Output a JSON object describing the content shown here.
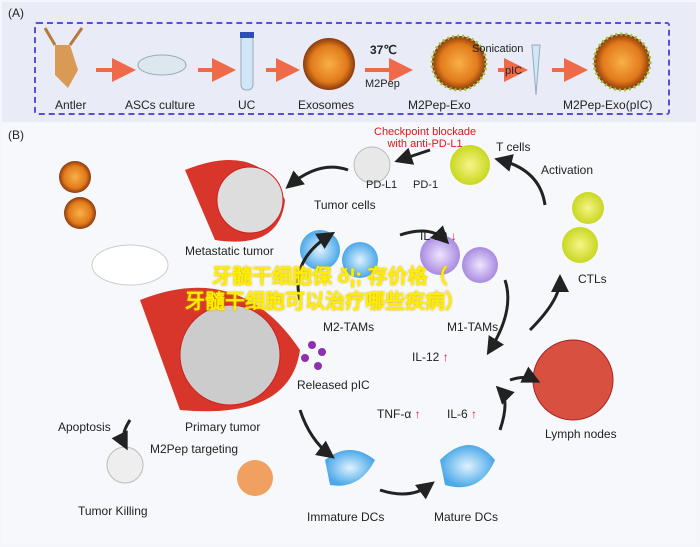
{
  "panel_a": {
    "tag": "(A)",
    "steps": [
      "Antler",
      "ASCs culture",
      "UC",
      "Exosomes",
      "M2Pep-Exo",
      "M2Pep-Exo(pIC)"
    ],
    "temp": "37℃",
    "peptide": "M2Pep",
    "sonication": "Sonication",
    "pic": "pIC"
  },
  "panel_b": {
    "tag": "(B)",
    "checkpoint": "Checkpoint blockade\nwith anti-PD-L1",
    "t_cells": "T cells",
    "pd_l1": "PD-L1",
    "pd_1": "PD-1",
    "tumor_cells": "Tumor cells",
    "activation": "Activation",
    "metastatic": "Metastatic tumor",
    "il10": "IL-10",
    "m2_tams": "M2-TAMs",
    "m1_tams": "M1-TAMs",
    "ctls": "CTLs",
    "il12": "IL-12",
    "released_pic": "Released pIC",
    "primary": "Primary tumor",
    "apoptosis": "Apoptosis",
    "targeting": "M2Pep targeting",
    "tnf": "TNF-α",
    "il6": "IL-6",
    "lymph": "Lymph nodes",
    "killing": "Tumor Killing",
    "immature": "Immature DCs",
    "mature": "Mature DCs",
    "up": "↑",
    "down": "↓"
  },
  "watermark": {
    "line1": "牙髓干细胞保 ð¦;  存价格（",
    "line2": "牙髓干细胞可以治疗哪些疾病）"
  },
  "colors": {
    "arrow": "#f06a4a",
    "dash": "#5b4fd6",
    "red": "#e0161b",
    "watermark": "#ffee00"
  }
}
